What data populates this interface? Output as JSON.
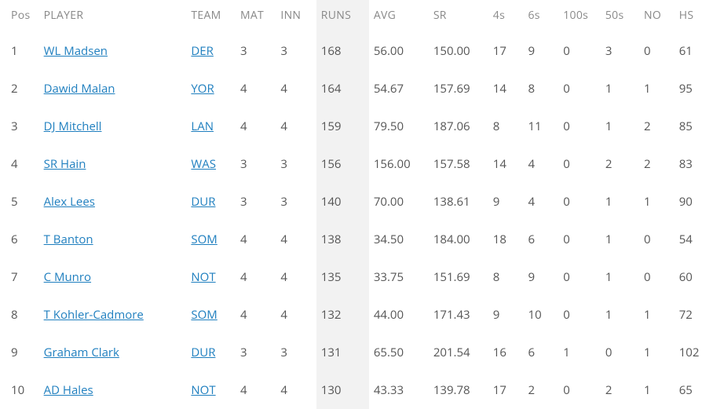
{
  "table": {
    "highlight_column_index": 5,
    "highlight_bg": "#f2f2f2",
    "link_color": "#1f7fbf",
    "text_color": "#555555",
    "header_color": "#888888",
    "columns": [
      {
        "key": "pos",
        "label": "Pos"
      },
      {
        "key": "player",
        "label": "PLAYER"
      },
      {
        "key": "team",
        "label": "TEAM"
      },
      {
        "key": "mat",
        "label": "MAT"
      },
      {
        "key": "inn",
        "label": "INN"
      },
      {
        "key": "runs",
        "label": "RUNS"
      },
      {
        "key": "avg",
        "label": "AVG"
      },
      {
        "key": "sr",
        "label": "SR"
      },
      {
        "key": "fours",
        "label": "4s"
      },
      {
        "key": "sixes",
        "label": "6s"
      },
      {
        "key": "hundreds",
        "label": "100s"
      },
      {
        "key": "fifties",
        "label": "50s"
      },
      {
        "key": "no",
        "label": "NO"
      },
      {
        "key": "hs",
        "label": "HS"
      }
    ],
    "rows": [
      {
        "pos": "1",
        "player": "WL Madsen",
        "team": "DER",
        "mat": "3",
        "inn": "3",
        "runs": "168",
        "avg": "56.00",
        "sr": "150.00",
        "fours": "17",
        "sixes": "9",
        "hundreds": "0",
        "fifties": "3",
        "no": "0",
        "hs": "61"
      },
      {
        "pos": "2",
        "player": "Dawid Malan",
        "team": "YOR",
        "mat": "4",
        "inn": "4",
        "runs": "164",
        "avg": "54.67",
        "sr": "157.69",
        "fours": "14",
        "sixes": "8",
        "hundreds": "0",
        "fifties": "1",
        "no": "1",
        "hs": "95"
      },
      {
        "pos": "3",
        "player": "DJ Mitchell",
        "team": "LAN",
        "mat": "4",
        "inn": "4",
        "runs": "159",
        "avg": "79.50",
        "sr": "187.06",
        "fours": "8",
        "sixes": "11",
        "hundreds": "0",
        "fifties": "1",
        "no": "2",
        "hs": "85"
      },
      {
        "pos": "4",
        "player": "SR Hain",
        "team": "WAS",
        "mat": "3",
        "inn": "3",
        "runs": "156",
        "avg": "156.00",
        "sr": "157.58",
        "fours": "14",
        "sixes": "4",
        "hundreds": "0",
        "fifties": "2",
        "no": "2",
        "hs": "83"
      },
      {
        "pos": "5",
        "player": "Alex Lees",
        "team": "DUR",
        "mat": "3",
        "inn": "3",
        "runs": "140",
        "avg": "70.00",
        "sr": "138.61",
        "fours": "9",
        "sixes": "4",
        "hundreds": "0",
        "fifties": "1",
        "no": "1",
        "hs": "90"
      },
      {
        "pos": "6",
        "player": "T Banton",
        "team": "SOM",
        "mat": "4",
        "inn": "4",
        "runs": "138",
        "avg": "34.50",
        "sr": "184.00",
        "fours": "18",
        "sixes": "6",
        "hundreds": "0",
        "fifties": "1",
        "no": "0",
        "hs": "54"
      },
      {
        "pos": "7",
        "player": "C Munro",
        "team": "NOT",
        "mat": "4",
        "inn": "4",
        "runs": "135",
        "avg": "33.75",
        "sr": "151.69",
        "fours": "8",
        "sixes": "9",
        "hundreds": "0",
        "fifties": "1",
        "no": "0",
        "hs": "60"
      },
      {
        "pos": "8",
        "player": "T Kohler-Cadmore",
        "team": "SOM",
        "mat": "4",
        "inn": "4",
        "runs": "132",
        "avg": "44.00",
        "sr": "171.43",
        "fours": "9",
        "sixes": "10",
        "hundreds": "0",
        "fifties": "1",
        "no": "1",
        "hs": "72"
      },
      {
        "pos": "9",
        "player": "Graham Clark",
        "team": "DUR",
        "mat": "3",
        "inn": "3",
        "runs": "131",
        "avg": "65.50",
        "sr": "201.54",
        "fours": "16",
        "sixes": "6",
        "hundreds": "1",
        "fifties": "0",
        "no": "1",
        "hs": "102"
      },
      {
        "pos": "10",
        "player": "AD Hales",
        "team": "NOT",
        "mat": "4",
        "inn": "4",
        "runs": "130",
        "avg": "43.33",
        "sr": "139.78",
        "fours": "17",
        "sixes": "2",
        "hundreds": "0",
        "fifties": "2",
        "no": "1",
        "hs": "65"
      }
    ]
  }
}
